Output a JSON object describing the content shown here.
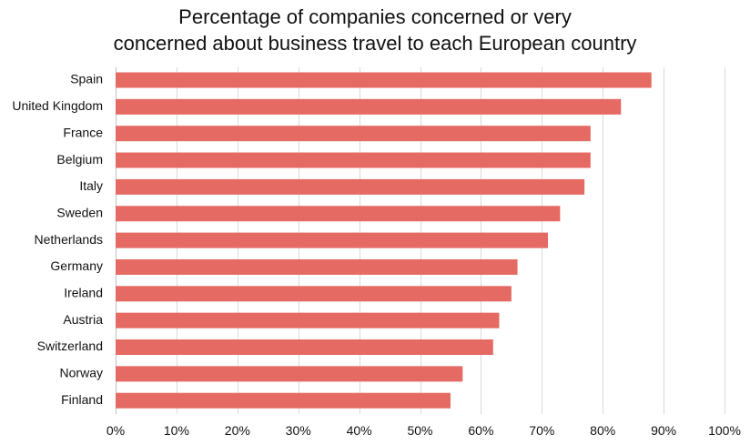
{
  "chart_data": {
    "type": "bar",
    "orientation": "horizontal",
    "title_lines": [
      "Percentage of companies concerned or very",
      "concerned about business travel to each European country"
    ],
    "categories": [
      "Spain",
      "United Kingdom",
      "France",
      "Belgium",
      "Italy",
      "Sweden",
      "Netherlands",
      "Germany",
      "Ireland",
      "Austria",
      "Switzerland",
      "Norway",
      "Finland"
    ],
    "values": [
      88,
      83,
      78,
      78,
      77,
      73,
      71,
      66,
      65,
      63,
      62,
      57,
      55
    ],
    "xlim": [
      0,
      100
    ],
    "xticks": [
      0,
      10,
      20,
      30,
      40,
      50,
      60,
      70,
      80,
      90,
      100
    ],
    "xtick_labels": [
      "0%",
      "10%",
      "20%",
      "30%",
      "40%",
      "50%",
      "60%",
      "70%",
      "80%",
      "90%",
      "100%"
    ],
    "xlabel": "",
    "ylabel": "",
    "grid": "vertical",
    "legend": "none",
    "bar_color": "#e56a63"
  }
}
